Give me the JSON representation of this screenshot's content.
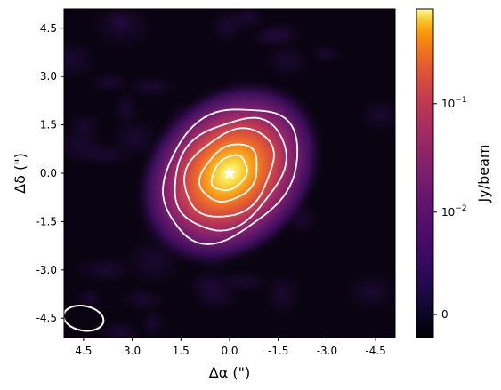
{
  "chart_data": {
    "type": "heatmap",
    "xlabel": "Δα (\")",
    "ylabel": "Δδ (\")",
    "xlim": [
      5.1,
      -5.1
    ],
    "ylim": [
      -5.1,
      5.1
    ],
    "x_ticks": [
      "4.5",
      "3.0",
      "1.5",
      "0.0",
      "-1.5",
      "-3.0",
      "-4.5"
    ],
    "x_tick_values": [
      4.5,
      3.0,
      1.5,
      0.0,
      -1.5,
      -3.0,
      -4.5
    ],
    "y_ticks": [
      "4.5",
      "3.0",
      "1.5",
      "0.0",
      "-1.5",
      "-3.0",
      "-4.5"
    ],
    "y_tick_values": [
      4.5,
      3.0,
      1.5,
      0.0,
      -1.5,
      -3.0,
      -4.5
    ],
    "colormap": "inferno",
    "colorbar": {
      "label": "Jy/beam",
      "scale": "log",
      "ticks": [
        {
          "label_base": "10",
          "label_exp": "−1",
          "value": 0.1
        },
        {
          "label_base": "10",
          "label_exp": "−2",
          "value": 0.01
        },
        {
          "label_plain": "0",
          "value": 0
        }
      ]
    },
    "source": {
      "center": [
        0.0,
        0.0
      ],
      "major_axis_pa_deg": 45,
      "peak_jy_beam": 0.5,
      "marker": "star"
    },
    "contours": [
      {
        "level_rank": 1,
        "semi_major": 2.35,
        "semi_minor": 1.75
      },
      {
        "level_rank": 2,
        "semi_major": 1.95,
        "semi_minor": 1.45
      },
      {
        "level_rank": 3,
        "semi_major": 1.55,
        "semi_minor": 1.15
      },
      {
        "level_rank": 4,
        "semi_major": 1.0,
        "semi_minor": 0.75
      },
      {
        "level_rank": 5,
        "semi_major": 0.62,
        "semi_minor": 0.45
      }
    ],
    "beam": {
      "center": [
        4.5,
        -4.5
      ],
      "major": 0.62,
      "minor": 0.38,
      "pa_deg": 10
    },
    "grid": false,
    "legend": "none"
  },
  "colors": {
    "background": "#0a0412",
    "contour": "#ffffff",
    "star": "#ffffff"
  }
}
